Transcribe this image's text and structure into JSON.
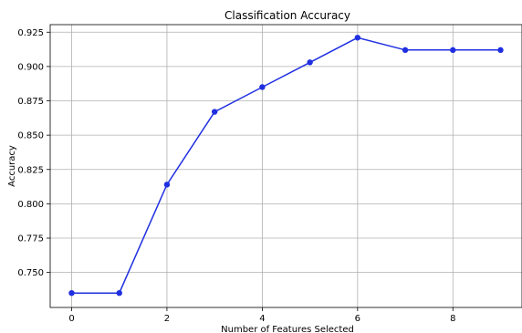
{
  "chart_data": {
    "type": "line",
    "title": "Classification Accuracy",
    "xlabel": "Number of Features Selected",
    "ylabel": "Accuracy",
    "x": [
      0,
      1,
      2,
      3,
      4,
      5,
      6,
      7,
      8,
      9
    ],
    "series": [
      {
        "values": [
          0.735,
          0.735,
          0.814,
          0.867,
          0.885,
          0.903,
          0.921,
          0.912,
          0.912,
          0.912
        ],
        "color": "#1f2fe0",
        "marker": "circle"
      }
    ],
    "xlim": [
      -0.45,
      9.45
    ],
    "ylim": [
      0.7245,
      0.9305
    ],
    "xticks": [
      0,
      2,
      4,
      6,
      8
    ],
    "xtick_labels": [
      "0",
      "2",
      "4",
      "6",
      "8"
    ],
    "yticks": [
      0.75,
      0.775,
      0.8,
      0.825,
      0.85,
      0.875,
      0.9,
      0.925
    ],
    "ytick_labels": [
      "0.750",
      "0.775",
      "0.800",
      "0.825",
      "0.850",
      "0.875",
      "0.900",
      "0.925"
    ],
    "grid": true,
    "grid_color": "#b0b0b0"
  }
}
